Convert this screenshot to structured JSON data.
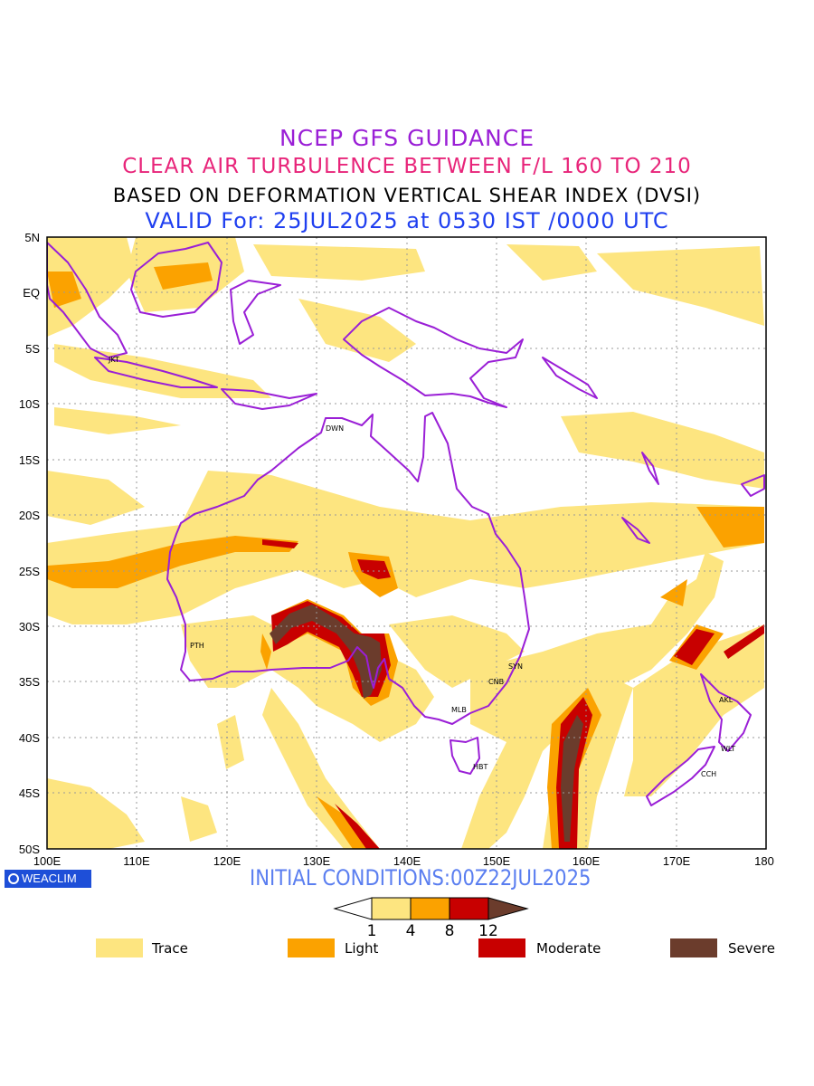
{
  "titles": {
    "line1": "NCEP GFS GUIDANCE",
    "line2": "CLEAR AIR TURBULENCE BETWEEN F/L 160 TO 210",
    "line3": "BASED ON DEFORMATION VERTICAL SHEAR INDEX (DVSI)",
    "line4": "VALID For: 25JUL2025 at 0530 IST /0000 UTC"
  },
  "map": {
    "lat_labels": [
      "5N",
      "EQ",
      "5S",
      "10S",
      "15S",
      "20S",
      "25S",
      "30S",
      "35S",
      "40S",
      "45S",
      "50S"
    ],
    "lon_labels": [
      "100E",
      "110E",
      "120E",
      "130E",
      "140E",
      "150E",
      "160E",
      "170E",
      "180"
    ],
    "cities": [
      "JKT",
      "DWN",
      "PTH",
      "SYN",
      "CNB",
      "MLB",
      "HBT",
      "AKL",
      "WLT",
      "CCH"
    ],
    "coastline_color": "#9a1fd6",
    "grid": true
  },
  "logo": "WEACLIM",
  "initial_conditions": "INITIAL CONDITIONS:00Z22JUL2025",
  "colorbar": {
    "ticks": [
      "1",
      "4",
      "8",
      "12"
    ],
    "colors": [
      "#ffffff",
      "#fde580",
      "#fba200",
      "#c80000",
      "#6b3c2c"
    ]
  },
  "legend": [
    {
      "label": "Trace",
      "color": "#fde580"
    },
    {
      "label": "Light",
      "color": "#fba200"
    },
    {
      "label": "Moderate",
      "color": "#c80000"
    },
    {
      "label": "Severe",
      "color": "#6b3c2c"
    }
  ]
}
